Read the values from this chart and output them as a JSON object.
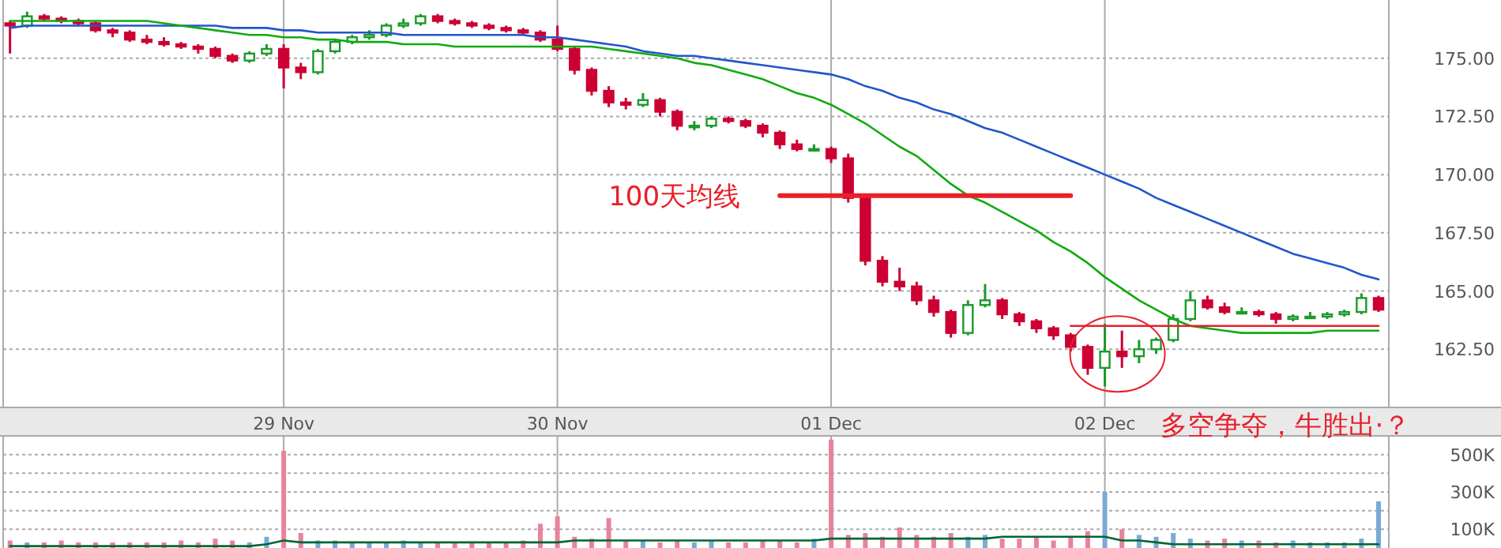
{
  "chart_data": [
    {
      "type": "candlestick",
      "ylim": [
        160,
        177.5
      ],
      "categories": [
        null,
        null,
        null,
        null,
        null,
        null,
        null,
        null,
        null,
        null,
        null,
        null,
        null,
        null,
        null,
        null,
        "29 Nov",
        null,
        null,
        null,
        null,
        null,
        null,
        null,
        null,
        null,
        null,
        null,
        null,
        null,
        null,
        null,
        "30 Nov",
        null,
        null,
        null,
        null,
        null,
        null,
        null,
        null,
        null,
        null,
        null,
        null,
        null,
        null,
        null,
        "01 Dec",
        null,
        null,
        null,
        null,
        null,
        null,
        null,
        null,
        null,
        null,
        null,
        null,
        null,
        null,
        null,
        "02 Dec",
        null,
        null,
        null,
        null,
        null,
        null,
        null,
        null,
        null,
        null,
        null,
        null,
        null,
        null,
        null,
        null
      ],
      "yticks": [
        {
          "value": 162.5,
          "label": "162.50"
        },
        {
          "value": 165,
          "label": "165.00"
        },
        {
          "value": 167.5,
          "label": "167.50"
        },
        {
          "value": 170,
          "label": "170.00"
        },
        {
          "value": 172.5,
          "label": "172.50"
        },
        {
          "value": 175,
          "label": "175.00"
        }
      ],
      "grid": true,
      "annotations": [
        {
          "text": "多空争夺，牛胜出·？",
          "x": "02 Dec",
          "y": 162.3
        }
      ],
      "series": [
        {
          "ohlc": [
            [
              176.5,
              176.6,
              175.2,
              176.4
            ],
            [
              176.4,
              177.0,
              176.3,
              176.8
            ],
            [
              176.8,
              176.9,
              176.6,
              176.7
            ],
            [
              176.7,
              176.8,
              176.5,
              176.6
            ],
            [
              176.6,
              176.7,
              176.4,
              176.5
            ],
            [
              176.5,
              176.6,
              176.1,
              176.2
            ],
            [
              176.2,
              176.3,
              175.9,
              176.1
            ],
            [
              176.1,
              176.2,
              175.7,
              175.8
            ],
            [
              175.8,
              176.0,
              175.6,
              175.7
            ],
            [
              175.7,
              175.9,
              175.5,
              175.6
            ],
            [
              175.6,
              175.7,
              175.4,
              175.5
            ],
            [
              175.5,
              175.6,
              175.2,
              175.4
            ],
            [
              175.4,
              175.5,
              175.0,
              175.1
            ],
            [
              175.1,
              175.2,
              174.8,
              174.9
            ],
            [
              174.9,
              175.3,
              174.8,
              175.2
            ],
            [
              175.2,
              175.6,
              175.1,
              175.4
            ],
            [
              175.4,
              175.6,
              173.7,
              174.6
            ],
            [
              174.6,
              174.8,
              174.1,
              174.4
            ],
            [
              174.4,
              175.4,
              174.3,
              175.3
            ],
            [
              175.3,
              175.8,
              175.2,
              175.7
            ],
            [
              175.7,
              176.0,
              175.6,
              175.9
            ],
            [
              175.9,
              176.2,
              175.8,
              176.0
            ],
            [
              176.0,
              176.5,
              175.9,
              176.4
            ],
            [
              176.4,
              176.7,
              176.3,
              176.5
            ],
            [
              176.5,
              176.9,
              176.4,
              176.8
            ],
            [
              176.8,
              176.9,
              176.5,
              176.6
            ],
            [
              176.6,
              176.7,
              176.4,
              176.5
            ],
            [
              176.5,
              176.6,
              176.3,
              176.4
            ],
            [
              176.4,
              176.5,
              176.2,
              176.3
            ],
            [
              176.3,
              176.4,
              176.1,
              176.2
            ],
            [
              176.2,
              176.3,
              176.0,
              176.1
            ],
            [
              176.1,
              176.2,
              175.7,
              175.8
            ],
            [
              175.8,
              176.4,
              175.3,
              175.4
            ],
            [
              175.4,
              175.5,
              174.3,
              174.5
            ],
            [
              174.5,
              174.6,
              173.4,
              173.6
            ],
            [
              173.6,
              173.8,
              172.9,
              173.1
            ],
            [
              173.1,
              173.3,
              172.8,
              173.0
            ],
            [
              173.0,
              173.5,
              172.9,
              173.2
            ],
            [
              173.2,
              173.3,
              172.5,
              172.7
            ],
            [
              172.7,
              172.8,
              171.9,
              172.1
            ],
            [
              172.1,
              172.3,
              171.9,
              172.1
            ],
            [
              172.1,
              172.5,
              172.0,
              172.4
            ],
            [
              172.4,
              172.5,
              172.2,
              172.3
            ],
            [
              172.3,
              172.4,
              172.0,
              172.1
            ],
            [
              172.1,
              172.2,
              171.6,
              171.8
            ],
            [
              171.8,
              171.9,
              171.1,
              171.3
            ],
            [
              171.3,
              171.5,
              171.0,
              171.1
            ],
            [
              171.1,
              171.3,
              171.0,
              171.1
            ],
            [
              171.1,
              171.2,
              170.5,
              170.7
            ],
            [
              170.7,
              170.9,
              168.8,
              169.0
            ],
            [
              169.0,
              169.1,
              166.1,
              166.3
            ],
            [
              166.3,
              166.5,
              165.2,
              165.4
            ],
            [
              165.4,
              166.0,
              165.0,
              165.2
            ],
            [
              165.2,
              165.4,
              164.4,
              164.6
            ],
            [
              164.6,
              164.8,
              163.9,
              164.1
            ],
            [
              164.1,
              164.2,
              163.0,
              163.2
            ],
            [
              163.2,
              164.6,
              163.1,
              164.4
            ],
            [
              164.4,
              165.3,
              164.3,
              164.6
            ],
            [
              164.6,
              164.7,
              163.8,
              164.0
            ],
            [
              164.0,
              164.1,
              163.5,
              163.7
            ],
            [
              163.7,
              163.8,
              163.2,
              163.4
            ],
            [
              163.4,
              163.5,
              162.9,
              163.1
            ],
            [
              163.1,
              163.2,
              162.4,
              162.6
            ],
            [
              162.6,
              162.7,
              161.4,
              161.7
            ],
            [
              161.7,
              163.6,
              160.9,
              162.4
            ],
            [
              162.4,
              163.3,
              161.7,
              162.2
            ],
            [
              162.2,
              162.9,
              161.9,
              162.5
            ],
            [
              162.5,
              163.0,
              162.3,
              162.9
            ],
            [
              162.9,
              164.0,
              162.8,
              163.8
            ],
            [
              163.8,
              165.0,
              163.7,
              164.6
            ],
            [
              164.6,
              164.8,
              164.2,
              164.3
            ],
            [
              164.3,
              164.5,
              164.0,
              164.1
            ],
            [
              164.1,
              164.3,
              164.0,
              164.1
            ],
            [
              164.1,
              164.2,
              163.9,
              164.0
            ],
            [
              164.0,
              164.1,
              163.6,
              163.8
            ],
            [
              163.8,
              164.0,
              163.7,
              163.9
            ],
            [
              163.9,
              164.1,
              163.8,
              163.9
            ],
            [
              163.9,
              164.1,
              163.8,
              164.0
            ],
            [
              164.0,
              164.2,
              163.9,
              164.1
            ],
            [
              164.1,
              164.9,
              164.0,
              164.7
            ],
            [
              164.7,
              164.8,
              164.1,
              164.2
            ]
          ],
          "colors": [
            "#cc0033",
            "#1a9a2a",
            "#cc0033",
            "#cc0033",
            "#cc0033",
            "#cc0033",
            "#cc0033",
            "#cc0033",
            "#cc0033",
            "#cc0033",
            "#cc0033",
            "#cc0033",
            "#cc0033",
            "#cc0033",
            "#1a9a2a",
            "#1a9a2a",
            "#cc0033",
            "#cc0033",
            "#1a9a2a",
            "#1a9a2a",
            "#1a9a2a",
            "#1a9a2a",
            "#1a9a2a",
            "#1a9a2a",
            "#1a9a2a",
            "#cc0033",
            "#cc0033",
            "#cc0033",
            "#cc0033",
            "#cc0033",
            "#cc0033",
            "#cc0033",
            "#cc0033",
            "#cc0033",
            "#cc0033",
            "#cc0033",
            "#cc0033",
            "#1a9a2a",
            "#cc0033",
            "#cc0033",
            "#1a9a2a",
            "#1a9a2a",
            "#cc0033",
            "#cc0033",
            "#cc0033",
            "#cc0033",
            "#cc0033",
            "#1a9a2a",
            "#cc0033",
            "#cc0033",
            "#cc0033",
            "#cc0033",
            "#cc0033",
            "#cc0033",
            "#cc0033",
            "#cc0033",
            "#1a9a2a",
            "#1a9a2a",
            "#cc0033",
            "#cc0033",
            "#cc0033",
            "#cc0033",
            "#cc0033",
            "#cc0033",
            "#1a9a2a",
            "#cc0033",
            "#1a9a2a",
            "#1a9a2a",
            "#1a9a2a",
            "#1a9a2a",
            "#cc0033",
            "#cc0033",
            "#1a9a2a",
            "#cc0033",
            "#cc0033",
            "#1a9a2a",
            "#1a9a2a",
            "#1a9a2a",
            "#1a9a2a",
            "#1a9a2a",
            "#cc0033"
          ]
        },
        {
          "type": "line",
          "color": "#2255cc",
          "values": [
            176.3,
            176.4,
            176.4,
            176.4,
            176.4,
            176.4,
            176.4,
            176.4,
            176.4,
            176.4,
            176.4,
            176.4,
            176.4,
            176.3,
            176.3,
            176.3,
            176.2,
            176.2,
            176.1,
            176.1,
            176.1,
            176.1,
            176.1,
            176.0,
            176.0,
            176.0,
            176.0,
            176.0,
            176.0,
            176.0,
            176.0,
            175.9,
            175.9,
            175.8,
            175.7,
            175.6,
            175.5,
            175.3,
            175.2,
            175.1,
            175.1,
            175.0,
            174.9,
            174.8,
            174.7,
            174.6,
            174.5,
            174.4,
            174.3,
            174.1,
            173.8,
            173.6,
            173.3,
            173.1,
            172.8,
            172.6,
            172.3,
            172.0,
            171.8,
            171.5,
            171.2,
            170.9,
            170.6,
            170.3,
            170.0,
            169.7,
            169.4,
            169.0,
            168.7,
            168.4,
            168.1,
            167.8,
            167.5,
            167.2,
            166.9,
            166.6,
            166.4,
            166.2,
            166.0,
            165.7,
            165.5
          ]
        },
        {
          "type": "line",
          "color": "#11aa11",
          "values": [
            176.6,
            176.6,
            176.6,
            176.6,
            176.6,
            176.6,
            176.6,
            176.6,
            176.6,
            176.5,
            176.4,
            176.3,
            176.2,
            176.1,
            176.0,
            176.0,
            175.9,
            175.9,
            175.8,
            175.8,
            175.7,
            175.7,
            175.7,
            175.6,
            175.6,
            175.6,
            175.5,
            175.5,
            175.5,
            175.5,
            175.5,
            175.5,
            175.5,
            175.5,
            175.5,
            175.4,
            175.3,
            175.2,
            175.1,
            175.0,
            174.8,
            174.7,
            174.5,
            174.3,
            174.1,
            173.8,
            173.5,
            173.3,
            173.0,
            172.6,
            172.2,
            171.7,
            171.2,
            170.8,
            170.2,
            169.6,
            169.1,
            168.8,
            168.4,
            168.0,
            167.6,
            167.1,
            166.7,
            166.2,
            165.6,
            165.1,
            164.6,
            164.2,
            163.8,
            163.5,
            163.4,
            163.3,
            163.2,
            163.2,
            163.2,
            163.2,
            163.2,
            163.3,
            163.3,
            163.3,
            163.3
          ]
        },
        {
          "type": "line",
          "name": "100天均线",
          "color": "#e8202a",
          "values": [
            null,
            null,
            null,
            null,
            null,
            null,
            null,
            null,
            null,
            null,
            null,
            null,
            null,
            null,
            null,
            null,
            null,
            null,
            null,
            null,
            null,
            null,
            null,
            null,
            null,
            null,
            null,
            null,
            null,
            null,
            null,
            null,
            null,
            null,
            null,
            null,
            null,
            null,
            null,
            null,
            null,
            null,
            null,
            null,
            null,
            169.1,
            169.1,
            169.1,
            169.1,
            169.1,
            169.1,
            169.1,
            169.1,
            169.1,
            169.1,
            169.1,
            169.1,
            169.1,
            169.1,
            169.1,
            169.1,
            169.1,
            169.1,
            null,
            null,
            null,
            null,
            null,
            null,
            null,
            null,
            null,
            null,
            null,
            null,
            null,
            null,
            null,
            null,
            null,
            null
          ]
        },
        {
          "type": "line",
          "color": "#e8202a",
          "values": [
            null,
            null,
            null,
            null,
            null,
            null,
            null,
            null,
            null,
            null,
            null,
            null,
            null,
            null,
            null,
            null,
            null,
            null,
            null,
            null,
            null,
            null,
            null,
            null,
            null,
            null,
            null,
            null,
            null,
            null,
            null,
            null,
            null,
            null,
            null,
            null,
            null,
            null,
            null,
            null,
            null,
            null,
            null,
            null,
            null,
            null,
            null,
            null,
            null,
            null,
            null,
            null,
            null,
            null,
            null,
            null,
            null,
            null,
            null,
            null,
            null,
            null,
            163.5,
            163.5,
            163.5,
            163.5,
            163.5,
            163.5,
            163.5,
            163.5,
            163.5,
            163.5,
            163.5,
            163.5,
            163.5,
            163.5,
            163.5,
            163.5,
            163.5,
            163.5,
            163.5
          ]
        }
      ]
    },
    {
      "type": "bar",
      "ylim": [
        0,
        600000
      ],
      "categories": [
        null,
        null,
        null,
        null,
        null,
        null,
        null,
        null,
        null,
        null,
        null,
        null,
        null,
        null,
        null,
        null,
        null,
        null,
        null,
        null,
        null,
        null,
        null,
        null,
        null,
        null,
        null,
        null,
        null,
        null,
        null,
        null,
        null,
        null,
        null,
        null,
        null,
        null,
        null,
        null,
        null,
        null,
        null,
        null,
        null,
        null,
        null,
        null,
        null,
        null,
        null,
        null,
        null,
        null,
        null,
        null,
        null,
        null,
        null,
        null,
        null,
        null,
        null,
        null,
        null,
        null,
        null,
        null,
        null,
        null,
        null,
        null,
        null,
        null,
        null,
        null,
        null,
        null,
        null,
        null,
        null
      ],
      "yticks": [
        {
          "value": 100000,
          "label": "100K"
        },
        {
          "value": 200000,
          "label": null
        },
        {
          "value": 300000,
          "label": "300K"
        },
        {
          "value": 400000,
          "label": null
        },
        {
          "value": 500000,
          "label": "500K"
        }
      ],
      "grid": true,
      "series": [
        {
          "values": [
            40000,
            30000,
            30000,
            40000,
            30000,
            30000,
            30000,
            30000,
            30000,
            30000,
            40000,
            30000,
            50000,
            40000,
            30000,
            60000,
            520000,
            80000,
            40000,
            40000,
            30000,
            30000,
            30000,
            40000,
            30000,
            30000,
            30000,
            30000,
            30000,
            30000,
            40000,
            130000,
            170000,
            60000,
            50000,
            160000,
            40000,
            40000,
            30000,
            40000,
            30000,
            40000,
            30000,
            30000,
            40000,
            40000,
            30000,
            50000,
            580000,
            70000,
            80000,
            60000,
            110000,
            70000,
            60000,
            80000,
            60000,
            70000,
            50000,
            50000,
            60000,
            40000,
            60000,
            90000,
            300000,
            100000,
            70000,
            60000,
            80000,
            50000,
            40000,
            50000,
            40000,
            40000,
            30000,
            40000,
            30000,
            30000,
            30000,
            50000,
            250000
          ],
          "colors": [
            "#e8839b",
            "#7aaad6",
            "#e8839b",
            "#e8839b",
            "#e8839b",
            "#e8839b",
            "#e8839b",
            "#e8839b",
            "#e8839b",
            "#e8839b",
            "#e8839b",
            "#e8839b",
            "#e8839b",
            "#e8839b",
            "#7aaad6",
            "#7aaad6",
            "#e8839b",
            "#e8839b",
            "#7aaad6",
            "#7aaad6",
            "#7aaad6",
            "#7aaad6",
            "#7aaad6",
            "#7aaad6",
            "#7aaad6",
            "#e8839b",
            "#e8839b",
            "#e8839b",
            "#e8839b",
            "#e8839b",
            "#e8839b",
            "#e8839b",
            "#e8839b",
            "#e8839b",
            "#e8839b",
            "#e8839b",
            "#e8839b",
            "#7aaad6",
            "#e8839b",
            "#e8839b",
            "#7aaad6",
            "#7aaad6",
            "#e8839b",
            "#e8839b",
            "#e8839b",
            "#e8839b",
            "#e8839b",
            "#7aaad6",
            "#e8839b",
            "#e8839b",
            "#e8839b",
            "#e8839b",
            "#e8839b",
            "#e8839b",
            "#e8839b",
            "#e8839b",
            "#7aaad6",
            "#7aaad6",
            "#e8839b",
            "#e8839b",
            "#e8839b",
            "#e8839b",
            "#e8839b",
            "#e8839b",
            "#7aaad6",
            "#e8839b",
            "#7aaad6",
            "#7aaad6",
            "#7aaad6",
            "#7aaad6",
            "#e8839b",
            "#e8839b",
            "#7aaad6",
            "#e8839b",
            "#e8839b",
            "#7aaad6",
            "#7aaad6",
            "#7aaad6",
            "#7aaad6",
            "#7aaad6",
            "#7aaad6"
          ]
        },
        {
          "type": "line",
          "color": "#006633",
          "values": [
            10000,
            10000,
            10000,
            10000,
            10000,
            10000,
            10000,
            10000,
            10000,
            10000,
            10000,
            10000,
            10000,
            10000,
            10000,
            20000,
            40000,
            30000,
            30000,
            30000,
            30000,
            30000,
            30000,
            30000,
            30000,
            30000,
            30000,
            30000,
            30000,
            30000,
            30000,
            30000,
            30000,
            40000,
            40000,
            40000,
            40000,
            40000,
            40000,
            40000,
            40000,
            40000,
            40000,
            40000,
            40000,
            40000,
            40000,
            40000,
            50000,
            50000,
            50000,
            50000,
            50000,
            50000,
            50000,
            50000,
            50000,
            50000,
            60000,
            60000,
            60000,
            60000,
            60000,
            60000,
            60000,
            40000,
            40000,
            30000,
            20000,
            20000,
            20000,
            20000,
            20000,
            20000,
            20000,
            20000,
            20000,
            20000,
            20000,
            20000,
            20000
          ]
        }
      ]
    }
  ]
}
